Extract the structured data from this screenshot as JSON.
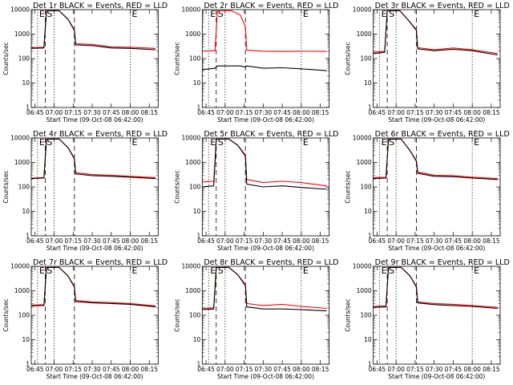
{
  "chart_data": [
    {
      "type": "line",
      "title": "Det 1r BLACK = Events, RED = LLD",
      "xlabel": "Start Time (09-Oct-08 06:42:00)",
      "ylabel": "Counts/sec",
      "x_ticks": [
        "06:45",
        "07:00",
        "07:15",
        "07:30",
        "07:45",
        "08:00",
        "08:15"
      ],
      "y_ticks": [
        "1",
        "10",
        "100",
        "1000",
        "10000"
      ],
      "yscale": "log",
      "xlim": [
        "06:42",
        "08:22"
      ],
      "ylim": [
        1,
        10000
      ],
      "markers": [
        {
          "label": "E",
          "x": "06:47"
        },
        {
          "label": "S",
          "x": "06:53"
        },
        {
          "label": "",
          "x": "07:00"
        },
        {
          "label": "",
          "x": "07:16"
        },
        {
          "label": "E",
          "x": "08:00"
        }
      ],
      "series": [
        {
          "x": [
            "06:42",
            "06:52",
            "06:54",
            "07:04",
            "07:11",
            "07:16",
            "07:17",
            "07:30",
            "07:45",
            "08:00",
            "08:20"
          ],
          "values": [
            280,
            290,
            9000,
            9000,
            4000,
            1500,
            400,
            380,
            300,
            290,
            260
          ],
          "color": "#ff0000"
        },
        {
          "x": [
            "06:42",
            "06:52",
            "06:54",
            "07:04",
            "07:11",
            "07:16",
            "07:17",
            "07:30",
            "07:45",
            "08:00",
            "08:20"
          ],
          "values": [
            260,
            270,
            9000,
            9000,
            4000,
            1400,
            360,
            340,
            270,
            260,
            230
          ],
          "color": "#000000"
        }
      ]
    },
    {
      "type": "line",
      "title": "Det 2r BLACK = Events, RED = LLD",
      "xlabel": "Start Time (09-Oct-08 06:42:00)",
      "ylabel": "Counts/sec",
      "x_ticks": [
        "06:45",
        "07:00",
        "07:15",
        "07:30",
        "07:45",
        "08:00",
        "08:15"
      ],
      "y_ticks": [
        "1",
        "10",
        "100",
        "1000",
        "10000"
      ],
      "yscale": "log",
      "xlim": [
        "06:42",
        "08:22"
      ],
      "ylim": [
        1,
        10000
      ],
      "markers": [
        {
          "label": "E",
          "x": "06:47"
        },
        {
          "label": "S",
          "x": "06:53"
        },
        {
          "label": "",
          "x": "07:00"
        },
        {
          "label": "",
          "x": "07:16"
        },
        {
          "label": "E",
          "x": "08:00"
        }
      ],
      "series": [
        {
          "x": [
            "06:42",
            "06:52",
            "06:54",
            "07:05",
            "07:12",
            "07:16",
            "07:17",
            "07:30",
            "07:45",
            "08:00",
            "08:20"
          ],
          "values": [
            200,
            210,
            9000,
            9000,
            6000,
            2000,
            220,
            200,
            195,
            200,
            195
          ],
          "color": "#ff0000"
        },
        {
          "x": [
            "06:42",
            "06:52",
            "06:54",
            "07:05",
            "07:12",
            "07:16",
            "07:17",
            "07:30",
            "07:45",
            "08:00",
            "08:20"
          ],
          "values": [
            35,
            40,
            50,
            50,
            50,
            45,
            50,
            40,
            42,
            38,
            32
          ],
          "color": "#000000"
        }
      ]
    },
    {
      "type": "line",
      "title": "Det 3r BLACK = Events, RED = LLD",
      "xlabel": "Start Time (09-Oct-08 06:42:00)",
      "ylabel": "Counts/sec",
      "x_ticks": [
        "06:45",
        "07:00",
        "07:15",
        "07:30",
        "07:45",
        "08:00",
        "08:15"
      ],
      "y_ticks": [
        "1",
        "10",
        "100",
        "1000",
        "10000"
      ],
      "yscale": "log",
      "xlim": [
        "06:42",
        "08:22"
      ],
      "ylim": [
        1,
        10000
      ],
      "markers": [
        {
          "label": "E",
          "x": "06:47"
        },
        {
          "label": "S",
          "x": "06:53"
        },
        {
          "label": "",
          "x": "07:00"
        },
        {
          "label": "",
          "x": "07:16"
        },
        {
          "label": "E",
          "x": "08:00"
        }
      ],
      "series": [
        {
          "x": [
            "06:42",
            "06:51",
            "06:53",
            "07:03",
            "07:10",
            "07:16",
            "07:17",
            "07:30",
            "07:45",
            "08:00",
            "08:20"
          ],
          "values": [
            180,
            200,
            9000,
            9000,
            3500,
            1500,
            280,
            230,
            270,
            230,
            160
          ],
          "color": "#ff0000"
        },
        {
          "x": [
            "06:42",
            "06:51",
            "06:53",
            "07:03",
            "07:10",
            "07:16",
            "07:17",
            "07:30",
            "07:45",
            "08:00",
            "08:20"
          ],
          "values": [
            160,
            180,
            9000,
            9000,
            3500,
            1400,
            250,
            210,
            240,
            210,
            140
          ],
          "color": "#000000"
        }
      ]
    },
    {
      "type": "line",
      "title": "Det 4r BLACK = Events, RED = LLD",
      "xlabel": "Start Time (09-Oct-08 06:42:00)",
      "ylabel": "Counts/sec",
      "x_ticks": [
        "06:45",
        "07:00",
        "07:15",
        "07:30",
        "07:45",
        "08:00",
        "08:15"
      ],
      "y_ticks": [
        "1",
        "10",
        "100",
        "1000",
        "10000"
      ],
      "yscale": "log",
      "xlim": [
        "06:42",
        "08:22"
      ],
      "ylim": [
        1,
        10000
      ],
      "markers": [
        {
          "label": "E",
          "x": "06:47"
        },
        {
          "label": "S",
          "x": "06:53"
        },
        {
          "label": "",
          "x": "07:00"
        },
        {
          "label": "",
          "x": "07:16"
        },
        {
          "label": "E",
          "x": "08:00"
        }
      ],
      "series": [
        {
          "x": [
            "06:42",
            "06:52",
            "06:54",
            "07:04",
            "07:11",
            "07:16",
            "07:17",
            "07:30",
            "07:45",
            "08:00",
            "08:20"
          ],
          "values": [
            230,
            240,
            9000,
            9000,
            4000,
            1500,
            380,
            320,
            300,
            270,
            240
          ],
          "color": "#ff0000"
        },
        {
          "x": [
            "06:42",
            "06:52",
            "06:54",
            "07:04",
            "07:11",
            "07:16",
            "07:17",
            "07:30",
            "07:45",
            "08:00",
            "08:20"
          ],
          "values": [
            220,
            230,
            9000,
            9000,
            4000,
            1400,
            340,
            290,
            270,
            250,
            220
          ],
          "color": "#000000"
        }
      ]
    },
    {
      "type": "line",
      "title": "Det 5r BLACK = Events, RED = LLD",
      "xlabel": "Start Time (09-Oct-08 06:42:00)",
      "ylabel": "Counts/sec",
      "x_ticks": [
        "06:45",
        "07:00",
        "07:15",
        "07:30",
        "07:45",
        "08:00",
        "08:15"
      ],
      "y_ticks": [
        "1",
        "10",
        "100",
        "1000",
        "10000"
      ],
      "yscale": "log",
      "xlim": [
        "06:42",
        "08:22"
      ],
      "ylim": [
        1,
        10000
      ],
      "markers": [
        {
          "label": "E",
          "x": "06:47"
        },
        {
          "label": "S",
          "x": "06:53"
        },
        {
          "label": "",
          "x": "07:00"
        },
        {
          "label": "",
          "x": "07:16"
        },
        {
          "label": "E",
          "x": "08:00"
        }
      ],
      "series": [
        {
          "x": [
            "06:42",
            "06:51",
            "06:53",
            "07:03",
            "07:10",
            "07:16",
            "07:17",
            "07:30",
            "07:45",
            "08:00",
            "08:20"
          ],
          "values": [
            160,
            170,
            9000,
            9000,
            5000,
            2000,
            200,
            150,
            170,
            150,
            110
          ],
          "color": "#ff0000"
        },
        {
          "x": [
            "06:42",
            "06:51",
            "06:53",
            "07:03",
            "07:10",
            "07:16",
            "07:17",
            "07:30",
            "07:45",
            "08:00",
            "08:20"
          ],
          "values": [
            100,
            110,
            9000,
            9000,
            5000,
            1800,
            130,
            100,
            110,
            95,
            80
          ],
          "color": "#000000"
        }
      ]
    },
    {
      "type": "line",
      "title": "Det 6r BLACK = Events, RED = LLD",
      "xlabel": "Start Time (09-Oct-08 06:42:00)",
      "ylabel": "Counts/sec",
      "x_ticks": [
        "06:45",
        "07:00",
        "07:15",
        "07:30",
        "07:45",
        "08:00",
        "08:15"
      ],
      "y_ticks": [
        "1",
        "10",
        "100",
        "1000",
        "10000"
      ],
      "yscale": "log",
      "xlim": [
        "06:42",
        "08:22"
      ],
      "ylim": [
        1,
        10000
      ],
      "markers": [
        {
          "label": "E",
          "x": "06:47"
        },
        {
          "label": "S",
          "x": "06:53"
        },
        {
          "label": "",
          "x": "07:00"
        },
        {
          "label": "",
          "x": "07:16"
        },
        {
          "label": "E",
          "x": "08:00"
        }
      ],
      "series": [
        {
          "x": [
            "06:42",
            "06:52",
            "06:54",
            "07:04",
            "07:11",
            "07:16",
            "07:17",
            "07:30",
            "07:45",
            "08:00",
            "08:20"
          ],
          "values": [
            240,
            250,
            9000,
            9000,
            3000,
            1200,
            400,
            300,
            290,
            250,
            220
          ],
          "color": "#ff0000"
        },
        {
          "x": [
            "06:42",
            "06:52",
            "06:54",
            "07:04",
            "07:11",
            "07:16",
            "07:17",
            "07:30",
            "07:45",
            "08:00",
            "08:20"
          ],
          "values": [
            220,
            230,
            9000,
            9000,
            3000,
            1100,
            360,
            270,
            260,
            230,
            200
          ],
          "color": "#000000"
        }
      ]
    },
    {
      "type": "line",
      "title": "Det 7r BLACK = Events, RED = LLD",
      "xlabel": "Start Time (09-Oct-08 06:42:00)",
      "ylabel": "Counts/sec",
      "x_ticks": [
        "06:45",
        "07:00",
        "07:15",
        "07:30",
        "07:45",
        "08:00",
        "08:15"
      ],
      "y_ticks": [
        "1",
        "10",
        "100",
        "1000",
        "10000"
      ],
      "yscale": "log",
      "xlim": [
        "06:42",
        "08:22"
      ],
      "ylim": [
        1,
        10000
      ],
      "markers": [
        {
          "label": "E",
          "x": "06:47"
        },
        {
          "label": "S",
          "x": "06:53"
        },
        {
          "label": "",
          "x": "07:00"
        },
        {
          "label": "",
          "x": "07:16"
        },
        {
          "label": "E",
          "x": "08:00"
        }
      ],
      "series": [
        {
          "x": [
            "06:42",
            "06:52",
            "06:54",
            "07:04",
            "07:11",
            "07:16",
            "07:17",
            "07:30",
            "07:45",
            "08:00",
            "08:20"
          ],
          "values": [
            260,
            270,
            9000,
            9000,
            4000,
            1500,
            400,
            350,
            330,
            300,
            240
          ],
          "color": "#ff0000"
        },
        {
          "x": [
            "06:42",
            "06:52",
            "06:54",
            "07:04",
            "07:11",
            "07:16",
            "07:17",
            "07:30",
            "07:45",
            "08:00",
            "08:20"
          ],
          "values": [
            240,
            250,
            9000,
            9000,
            4000,
            1400,
            360,
            320,
            300,
            280,
            220
          ],
          "color": "#000000"
        }
      ]
    },
    {
      "type": "line",
      "title": "Det 8r BLACK = Events, RED = LLD",
      "xlabel": "Start Time (09-Oct-08 06:42:00)",
      "ylabel": "Counts/sec",
      "x_ticks": [
        "06:45",
        "07:00",
        "07:15",
        "07:30",
        "07:45",
        "08:00",
        "08:15"
      ],
      "y_ticks": [
        "1",
        "10",
        "100",
        "1000",
        "10000"
      ],
      "yscale": "log",
      "xlim": [
        "06:42",
        "08:22"
      ],
      "ylim": [
        1,
        10000
      ],
      "markers": [
        {
          "label": "E",
          "x": "06:47"
        },
        {
          "label": "S",
          "x": "06:53"
        },
        {
          "label": "",
          "x": "07:00"
        },
        {
          "label": "",
          "x": "07:16"
        },
        {
          "label": "E",
          "x": "08:00"
        }
      ],
      "series": [
        {
          "x": [
            "06:42",
            "06:51",
            "06:53",
            "07:03",
            "07:10",
            "07:16",
            "07:17",
            "07:30",
            "07:45",
            "08:00",
            "08:20"
          ],
          "values": [
            190,
            200,
            9000,
            9000,
            4500,
            1800,
            300,
            250,
            280,
            230,
            190
          ],
          "color": "#ff0000"
        },
        {
          "x": [
            "06:42",
            "06:51",
            "06:53",
            "07:03",
            "07:10",
            "07:16",
            "07:17",
            "07:30",
            "07:45",
            "08:00",
            "08:20"
          ],
          "values": [
            170,
            180,
            9000,
            9000,
            4500,
            1600,
            220,
            180,
            180,
            170,
            150
          ],
          "color": "#000000"
        }
      ]
    },
    {
      "type": "line",
      "title": "Det 9r BLACK = Events, RED = LLD",
      "xlabel": "Start Time (09-Oct-08 06:42:00)",
      "ylabel": "Counts/sec",
      "x_ticks": [
        "06:45",
        "07:00",
        "07:15",
        "07:30",
        "07:45",
        "08:00",
        "08:15"
      ],
      "y_ticks": [
        "1",
        "10",
        "100",
        "1000",
        "10000"
      ],
      "yscale": "log",
      "xlim": [
        "06:42",
        "08:22"
      ],
      "ylim": [
        1,
        10000
      ],
      "markers": [
        {
          "label": "E",
          "x": "06:47"
        },
        {
          "label": "S",
          "x": "06:53"
        },
        {
          "label": "",
          "x": "07:00"
        },
        {
          "label": "",
          "x": "07:16"
        },
        {
          "label": "E",
          "x": "08:00"
        }
      ],
      "series": [
        {
          "x": [
            "06:42",
            "06:52",
            "06:54",
            "07:04",
            "07:11",
            "07:16",
            "07:17",
            "07:30",
            "07:45",
            "08:00",
            "08:20"
          ],
          "values": [
            230,
            240,
            9000,
            9000,
            4000,
            1500,
            350,
            300,
            280,
            250,
            210
          ],
          "color": "#ff0000"
        },
        {
          "x": [
            "06:42",
            "06:52",
            "06:54",
            "07:04",
            "07:11",
            "07:16",
            "07:17",
            "07:30",
            "07:45",
            "08:00",
            "08:20"
          ],
          "values": [
            210,
            220,
            9000,
            9000,
            4000,
            1400,
            320,
            270,
            250,
            230,
            190
          ],
          "color": "#000000"
        }
      ]
    }
  ]
}
